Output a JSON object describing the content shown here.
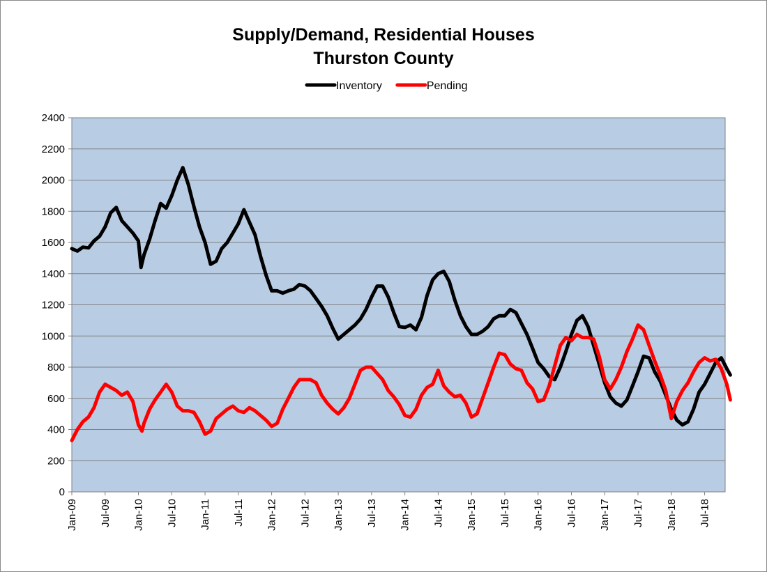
{
  "chart_data": {
    "type": "line",
    "title": "Supply/Demand, Residential Houses",
    "subtitle": "Thurston County",
    "xlabel": "",
    "ylabel": "",
    "ylim": [
      0,
      2400
    ],
    "yticks": [
      0,
      200,
      400,
      600,
      800,
      1000,
      1200,
      1400,
      1600,
      1800,
      2000,
      2200,
      2400
    ],
    "xlim": [
      "Jan-09",
      "Oct-18"
    ],
    "x_tick_labels": [
      "Jan-09",
      "Jul-09",
      "Jan-10",
      "Jul-10",
      "Jan-11",
      "Jul-11",
      "Jan-12",
      "Jul-12",
      "Jan-13",
      "Jul-13",
      "Jan-14",
      "Jul-14",
      "Jan-15",
      "Jul-15",
      "Jan-16",
      "Jul-16",
      "Jan-17",
      "Jul-17",
      "Jan-18",
      "Jul-18"
    ],
    "grid": true,
    "legend_position": "top",
    "plot_background": "#b8cce4",
    "series": [
      {
        "name": "Inventory",
        "color": "#000000",
        "points": [
          [
            "2009-01",
            1560
          ],
          [
            "2009-02",
            1545
          ],
          [
            "2009-03",
            1570
          ],
          [
            "2009-04",
            1565
          ],
          [
            "2009-05",
            1610
          ],
          [
            "2009-06",
            1640
          ],
          [
            "2009-07",
            1700
          ],
          [
            "2009-08",
            1790
          ],
          [
            "2009-09",
            1825
          ],
          [
            "2009-10",
            1740
          ],
          [
            "2009-11",
            1700
          ],
          [
            "2009-12",
            1660
          ],
          [
            "2010-01",
            1610
          ],
          [
            "2010-01-15",
            1440
          ],
          [
            "2010-02",
            1520
          ],
          [
            "2010-03",
            1620
          ],
          [
            "2010-04",
            1740
          ],
          [
            "2010-05",
            1850
          ],
          [
            "2010-06",
            1820
          ],
          [
            "2010-07",
            1900
          ],
          [
            "2010-08",
            2000
          ],
          [
            "2010-09",
            2080
          ],
          [
            "2010-10",
            1970
          ],
          [
            "2010-11",
            1830
          ],
          [
            "2010-12",
            1700
          ],
          [
            "2011-01",
            1600
          ],
          [
            "2011-02",
            1460
          ],
          [
            "2011-03",
            1480
          ],
          [
            "2011-04",
            1560
          ],
          [
            "2011-05",
            1600
          ],
          [
            "2011-06",
            1660
          ],
          [
            "2011-07",
            1720
          ],
          [
            "2011-08",
            1810
          ],
          [
            "2011-09",
            1730
          ],
          [
            "2011-10",
            1650
          ],
          [
            "2011-11",
            1510
          ],
          [
            "2011-12",
            1390
          ],
          [
            "2012-01",
            1290
          ],
          [
            "2012-02",
            1290
          ],
          [
            "2012-03",
            1275
          ],
          [
            "2012-04",
            1290
          ],
          [
            "2012-05",
            1300
          ],
          [
            "2012-06",
            1330
          ],
          [
            "2012-07",
            1320
          ],
          [
            "2012-08",
            1290
          ],
          [
            "2012-09",
            1240
          ],
          [
            "2012-10",
            1190
          ],
          [
            "2012-11",
            1130
          ],
          [
            "2012-12",
            1050
          ],
          [
            "2013-01",
            980
          ],
          [
            "2013-02",
            1010
          ],
          [
            "2013-03",
            1040
          ],
          [
            "2013-04",
            1070
          ],
          [
            "2013-05",
            1110
          ],
          [
            "2013-06",
            1170
          ],
          [
            "2013-07",
            1250
          ],
          [
            "2013-08",
            1320
          ],
          [
            "2013-09",
            1320
          ],
          [
            "2013-10",
            1250
          ],
          [
            "2013-11",
            1150
          ],
          [
            "2013-12",
            1060
          ],
          [
            "2014-01",
            1055
          ],
          [
            "2014-02",
            1070
          ],
          [
            "2014-03",
            1040
          ],
          [
            "2014-04",
            1120
          ],
          [
            "2014-05",
            1260
          ],
          [
            "2014-06",
            1360
          ],
          [
            "2014-07",
            1400
          ],
          [
            "2014-08",
            1415
          ],
          [
            "2014-09",
            1350
          ],
          [
            "2014-10",
            1230
          ],
          [
            "2014-11",
            1130
          ],
          [
            "2014-12",
            1060
          ],
          [
            "2015-01",
            1010
          ],
          [
            "2015-02",
            1010
          ],
          [
            "2015-03",
            1030
          ],
          [
            "2015-04",
            1060
          ],
          [
            "2015-05",
            1110
          ],
          [
            "2015-06",
            1130
          ],
          [
            "2015-07",
            1130
          ],
          [
            "2015-08",
            1170
          ],
          [
            "2015-09",
            1150
          ],
          [
            "2015-10",
            1080
          ],
          [
            "2015-11",
            1010
          ],
          [
            "2015-12",
            920
          ],
          [
            "2016-01",
            830
          ],
          [
            "2016-02",
            790
          ],
          [
            "2016-03",
            740
          ],
          [
            "2016-04",
            720
          ],
          [
            "2016-05",
            800
          ],
          [
            "2016-06",
            900
          ],
          [
            "2016-07",
            1010
          ],
          [
            "2016-08",
            1100
          ],
          [
            "2016-09",
            1130
          ],
          [
            "2016-10",
            1060
          ],
          [
            "2016-11",
            940
          ],
          [
            "2016-12",
            820
          ],
          [
            "2017-01",
            700
          ],
          [
            "2017-02",
            610
          ],
          [
            "2017-03",
            570
          ],
          [
            "2017-04",
            550
          ],
          [
            "2017-05",
            590
          ],
          [
            "2017-06",
            680
          ],
          [
            "2017-07",
            770
          ],
          [
            "2017-08",
            870
          ],
          [
            "2017-09",
            860
          ],
          [
            "2017-10",
            770
          ],
          [
            "2017-11",
            710
          ],
          [
            "2017-12",
            620
          ],
          [
            "2018-01",
            530
          ],
          [
            "2018-02",
            460
          ],
          [
            "2018-03",
            430
          ],
          [
            "2018-04",
            450
          ],
          [
            "2018-05",
            530
          ],
          [
            "2018-06",
            640
          ],
          [
            "2018-07",
            690
          ],
          [
            "2018-08",
            760
          ],
          [
            "2018-09",
            830
          ],
          [
            "2018-10",
            860
          ],
          [
            "2018-11",
            790
          ],
          [
            "2018-11-20",
            750
          ]
        ]
      },
      {
        "name": "Pending",
        "color": "#ff0000",
        "points": [
          [
            "2009-01",
            330
          ],
          [
            "2009-02",
            400
          ],
          [
            "2009-03",
            450
          ],
          [
            "2009-04",
            480
          ],
          [
            "2009-05",
            540
          ],
          [
            "2009-06",
            640
          ],
          [
            "2009-07",
            690
          ],
          [
            "2009-08",
            670
          ],
          [
            "2009-09",
            650
          ],
          [
            "2009-10",
            620
          ],
          [
            "2009-11",
            640
          ],
          [
            "2009-12",
            580
          ],
          [
            "2010-01",
            430
          ],
          [
            "2010-01-20",
            390
          ],
          [
            "2010-02",
            440
          ],
          [
            "2010-03",
            530
          ],
          [
            "2010-04",
            590
          ],
          [
            "2010-05",
            640
          ],
          [
            "2010-06",
            690
          ],
          [
            "2010-07",
            640
          ],
          [
            "2010-08",
            550
          ],
          [
            "2010-09",
            520
          ],
          [
            "2010-10",
            520
          ],
          [
            "2010-11",
            510
          ],
          [
            "2010-12",
            450
          ],
          [
            "2011-01",
            370
          ],
          [
            "2011-02",
            390
          ],
          [
            "2011-03",
            470
          ],
          [
            "2011-04",
            500
          ],
          [
            "2011-05",
            530
          ],
          [
            "2011-06",
            550
          ],
          [
            "2011-07",
            520
          ],
          [
            "2011-08",
            510
          ],
          [
            "2011-09",
            540
          ],
          [
            "2011-10",
            520
          ],
          [
            "2011-11",
            490
          ],
          [
            "2011-12",
            460
          ],
          [
            "2012-01",
            420
          ],
          [
            "2012-02",
            440
          ],
          [
            "2012-03",
            530
          ],
          [
            "2012-04",
            600
          ],
          [
            "2012-05",
            670
          ],
          [
            "2012-06",
            720
          ],
          [
            "2012-07",
            720
          ],
          [
            "2012-08",
            720
          ],
          [
            "2012-09",
            700
          ],
          [
            "2012-10",
            620
          ],
          [
            "2012-11",
            570
          ],
          [
            "2012-12",
            530
          ],
          [
            "2013-01",
            500
          ],
          [
            "2013-02",
            540
          ],
          [
            "2013-03",
            600
          ],
          [
            "2013-04",
            690
          ],
          [
            "2013-05",
            780
          ],
          [
            "2013-06",
            800
          ],
          [
            "2013-07",
            800
          ],
          [
            "2013-08",
            760
          ],
          [
            "2013-09",
            720
          ],
          [
            "2013-10",
            650
          ],
          [
            "2013-11",
            610
          ],
          [
            "2013-12",
            560
          ],
          [
            "2014-01",
            490
          ],
          [
            "2014-02",
            480
          ],
          [
            "2014-03",
            530
          ],
          [
            "2014-04",
            620
          ],
          [
            "2014-05",
            670
          ],
          [
            "2014-06",
            690
          ],
          [
            "2014-07",
            780
          ],
          [
            "2014-08",
            680
          ],
          [
            "2014-09",
            640
          ],
          [
            "2014-10",
            610
          ],
          [
            "2014-11",
            620
          ],
          [
            "2014-12",
            570
          ],
          [
            "2015-01",
            480
          ],
          [
            "2015-02",
            500
          ],
          [
            "2015-03",
            600
          ],
          [
            "2015-04",
            700
          ],
          [
            "2015-05",
            800
          ],
          [
            "2015-06",
            890
          ],
          [
            "2015-07",
            880
          ],
          [
            "2015-08",
            820
          ],
          [
            "2015-09",
            790
          ],
          [
            "2015-10",
            780
          ],
          [
            "2015-11",
            700
          ],
          [
            "2015-12",
            660
          ],
          [
            "2016-01",
            580
          ],
          [
            "2016-02",
            590
          ],
          [
            "2016-03",
            680
          ],
          [
            "2016-04",
            810
          ],
          [
            "2016-05",
            940
          ],
          [
            "2016-06",
            990
          ],
          [
            "2016-07",
            970
          ],
          [
            "2016-08",
            1010
          ],
          [
            "2016-09",
            990
          ],
          [
            "2016-10",
            990
          ],
          [
            "2016-11",
            980
          ],
          [
            "2016-12",
            870
          ],
          [
            "2017-01",
            720
          ],
          [
            "2017-02",
            660
          ],
          [
            "2017-03",
            720
          ],
          [
            "2017-04",
            800
          ],
          [
            "2017-05",
            900
          ],
          [
            "2017-06",
            980
          ],
          [
            "2017-07",
            1070
          ],
          [
            "2017-08",
            1040
          ],
          [
            "2017-09",
            940
          ],
          [
            "2017-10",
            840
          ],
          [
            "2017-11",
            750
          ],
          [
            "2017-12",
            650
          ],
          [
            "2018-01",
            470
          ],
          [
            "2018-02",
            580
          ],
          [
            "2018-03",
            650
          ],
          [
            "2018-04",
            700
          ],
          [
            "2018-05",
            770
          ],
          [
            "2018-06",
            830
          ],
          [
            "2018-07",
            860
          ],
          [
            "2018-08",
            840
          ],
          [
            "2018-09",
            850
          ],
          [
            "2018-10",
            790
          ],
          [
            "2018-11",
            690
          ],
          [
            "2018-11-20",
            590
          ]
        ]
      }
    ]
  }
}
